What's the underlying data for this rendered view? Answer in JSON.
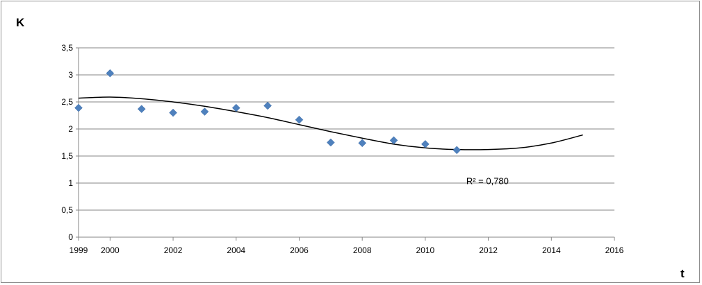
{
  "chart_data": {
    "type": "scatter",
    "title": "",
    "ylabel": "K",
    "xlabel": "t",
    "xlim": [
      1999,
      2016
    ],
    "ylim": [
      0,
      3.5
    ],
    "x_ticks": [
      1999,
      2000,
      2002,
      2004,
      2006,
      2008,
      2010,
      2012,
      2014,
      2016
    ],
    "y_ticks": [
      0,
      0.5,
      1,
      1.5,
      2,
      2.5,
      3,
      3.5
    ],
    "y_tick_labels": [
      "0",
      "0,5",
      "1",
      "1,5",
      "2",
      "2,5",
      "3",
      "3,5"
    ],
    "grid": "horizontal",
    "legend": "none",
    "series": [
      {
        "marker": "diamond",
        "color": "#4f81bd",
        "x": [
          1999,
          2000,
          2001,
          2002,
          2003,
          2004,
          2005,
          2006,
          2007,
          2008,
          2009,
          2010,
          2011
        ],
        "y": [
          2.39,
          3.03,
          2.37,
          2.3,
          2.32,
          2.39,
          2.43,
          2.17,
          1.75,
          1.74,
          1.79,
          1.72,
          1.61
        ]
      }
    ],
    "trendline": {
      "type": "polynomial",
      "color": "#000000",
      "x": [
        1999,
        2000,
        2001,
        2002,
        2003,
        2004,
        2005,
        2006,
        2007,
        2008,
        2009,
        2010,
        2011,
        2012,
        2013,
        2014,
        2015
      ],
      "y": [
        2.57,
        2.59,
        2.56,
        2.5,
        2.42,
        2.32,
        2.21,
        2.08,
        1.95,
        1.83,
        1.72,
        1.65,
        1.62,
        1.62,
        1.65,
        1.74,
        1.89
      ]
    },
    "annotations": [
      {
        "text": "R² = 0,780",
        "x": 2011.3,
        "y": 0.98
      }
    ]
  }
}
